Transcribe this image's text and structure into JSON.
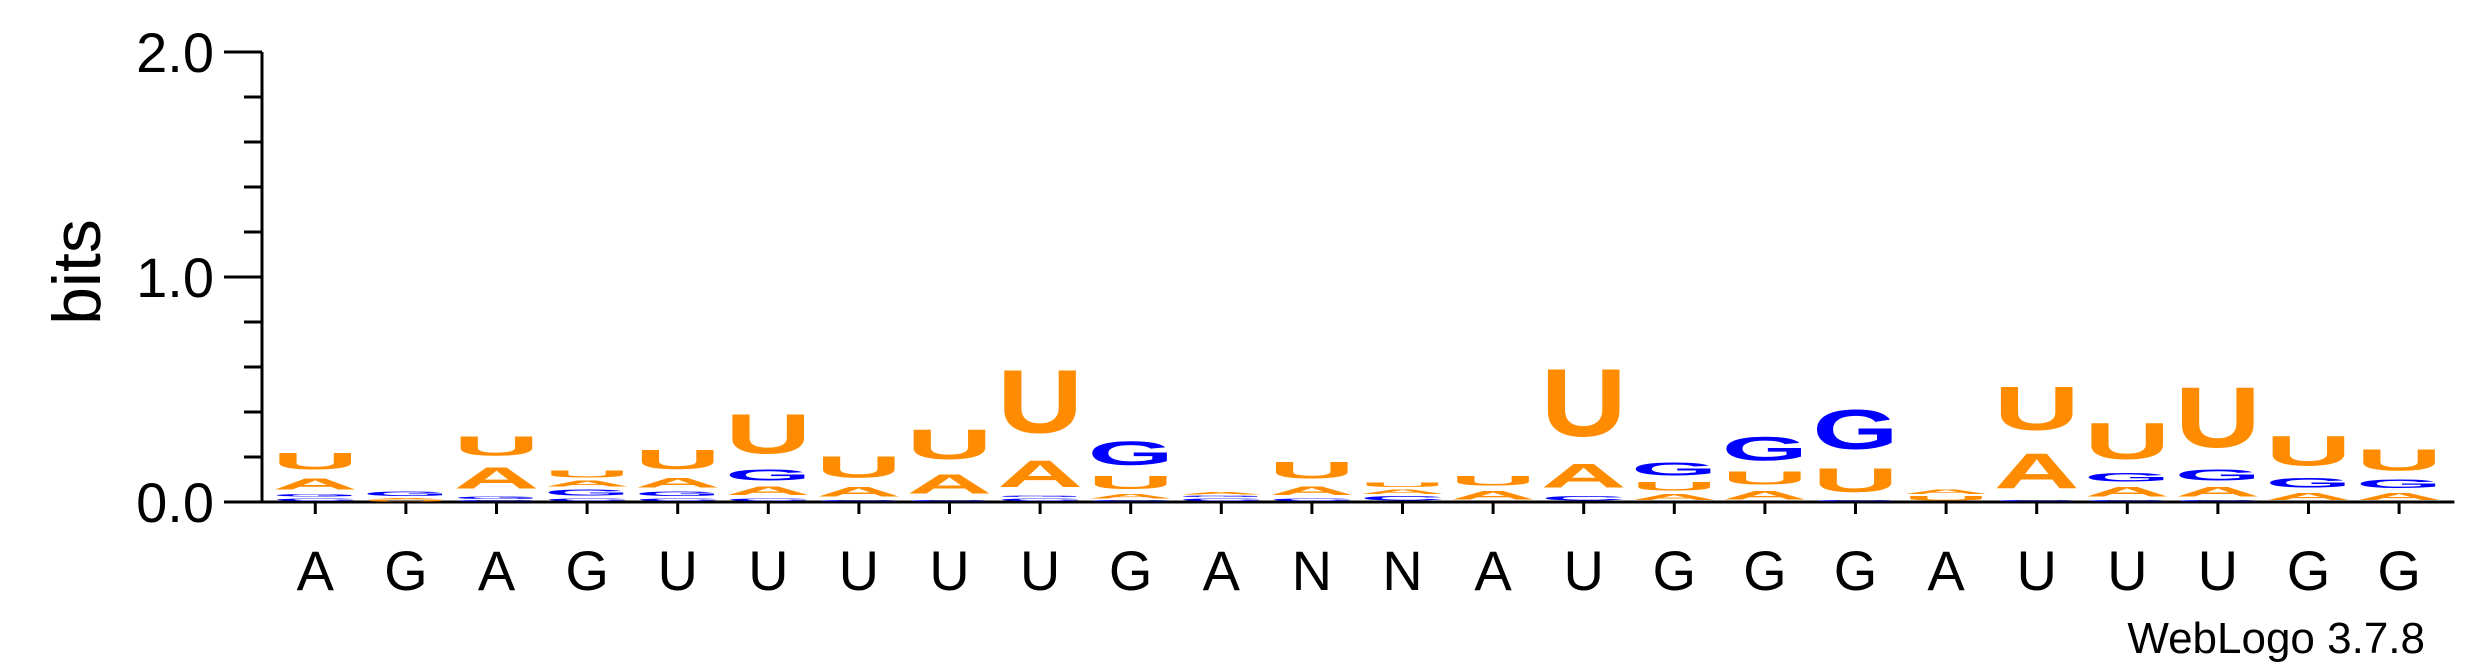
{
  "chart_data": {
    "type": "sequence-logo",
    "ylabel": "bits",
    "ylim": [
      0,
      2.0
    ],
    "yticks": [
      "0.0",
      "1.0",
      "2.0"
    ],
    "credit": "WebLogo 3.7.8",
    "colors": {
      "A": "#ff8c00",
      "U": "#ff8c00",
      "G": "#0000ff",
      "C": "#0000ff"
    },
    "positions": [
      {
        "label": "A",
        "stack": [
          [
            "C",
            0.02
          ],
          [
            "G",
            0.02
          ],
          [
            "A",
            0.08
          ],
          [
            "U",
            0.12
          ]
        ]
      },
      {
        "label": "G",
        "stack": [
          [
            "U",
            0.01
          ],
          [
            "A",
            0.01
          ],
          [
            "G",
            0.03
          ]
        ]
      },
      {
        "label": "A",
        "stack": [
          [
            "C",
            0.01
          ],
          [
            "G",
            0.02
          ],
          [
            "A",
            0.15
          ],
          [
            "U",
            0.14
          ]
        ]
      },
      {
        "label": "G",
        "stack": [
          [
            "C",
            0.02
          ],
          [
            "G",
            0.04
          ],
          [
            "A",
            0.04
          ],
          [
            "U",
            0.05
          ]
        ]
      },
      {
        "label": "U",
        "stack": [
          [
            "C",
            0.02
          ],
          [
            "G",
            0.03
          ],
          [
            "A",
            0.07
          ],
          [
            "U",
            0.14
          ]
        ]
      },
      {
        "label": "U",
        "stack": [
          [
            "C",
            0.02
          ],
          [
            "A",
            0.06
          ],
          [
            "G",
            0.08
          ],
          [
            "U",
            0.28
          ]
        ]
      },
      {
        "label": "U",
        "stack": [
          [
            "C",
            0.01
          ],
          [
            "A",
            0.07
          ],
          [
            "U",
            0.15
          ]
        ]
      },
      {
        "label": "U",
        "stack": [
          [
            "C",
            0.01
          ],
          [
            "A",
            0.14
          ],
          [
            "U",
            0.21
          ]
        ]
      },
      {
        "label": "U",
        "stack": [
          [
            "C",
            0.02
          ],
          [
            "G",
            0.01
          ],
          [
            "A",
            0.19
          ],
          [
            "U",
            0.45
          ]
        ]
      },
      {
        "label": "G",
        "stack": [
          [
            "C",
            0.01
          ],
          [
            "A",
            0.03
          ],
          [
            "U",
            0.09
          ],
          [
            "G",
            0.17
          ]
        ]
      },
      {
        "label": "A",
        "stack": [
          [
            "C",
            0.02
          ],
          [
            "G",
            0.01
          ],
          [
            "A",
            0.02
          ]
        ]
      },
      {
        "label": "N",
        "stack": [
          [
            "C",
            0.02
          ],
          [
            "A",
            0.06
          ],
          [
            "U",
            0.12
          ]
        ]
      },
      {
        "label": "N",
        "stack": [
          [
            "C",
            0.03
          ],
          [
            "A",
            0.03
          ],
          [
            "U",
            0.03
          ]
        ]
      },
      {
        "label": "A",
        "stack": [
          [
            "A",
            0.06
          ],
          [
            "U",
            0.07
          ]
        ]
      },
      {
        "label": "U",
        "stack": [
          [
            "C",
            0.03
          ],
          [
            "A",
            0.17
          ],
          [
            "U",
            0.48
          ]
        ]
      },
      {
        "label": "G",
        "stack": [
          [
            "A",
            0.04
          ],
          [
            "U",
            0.06
          ],
          [
            "G",
            0.09
          ]
        ]
      },
      {
        "label": "G",
        "stack": [
          [
            "A",
            0.06
          ],
          [
            "U",
            0.09
          ],
          [
            "G",
            0.17
          ]
        ]
      },
      {
        "label": "G",
        "stack": [
          [
            "C",
            0.01
          ],
          [
            "U",
            0.17
          ],
          [
            "G",
            0.28
          ]
        ]
      },
      {
        "label": "A",
        "stack": [
          [
            "U",
            0.03
          ],
          [
            "A",
            0.03
          ]
        ]
      },
      {
        "label": "U",
        "stack": [
          [
            "C",
            0.01
          ],
          [
            "A",
            0.25
          ],
          [
            "U",
            0.31
          ]
        ]
      },
      {
        "label": "U",
        "stack": [
          [
            "C",
            0.01
          ],
          [
            "A",
            0.07
          ],
          [
            "G",
            0.06
          ],
          [
            "U",
            0.26
          ]
        ]
      },
      {
        "label": "U",
        "stack": [
          [
            "C",
            0.01
          ],
          [
            "A",
            0.07
          ],
          [
            "G",
            0.08
          ],
          [
            "U",
            0.43
          ]
        ]
      },
      {
        "label": "G",
        "stack": [
          [
            "A",
            0.05
          ],
          [
            "G",
            0.07
          ],
          [
            "U",
            0.21
          ]
        ]
      },
      {
        "label": "G",
        "stack": [
          [
            "A",
            0.05
          ],
          [
            "G",
            0.06
          ],
          [
            "U",
            0.15
          ]
        ]
      }
    ]
  }
}
